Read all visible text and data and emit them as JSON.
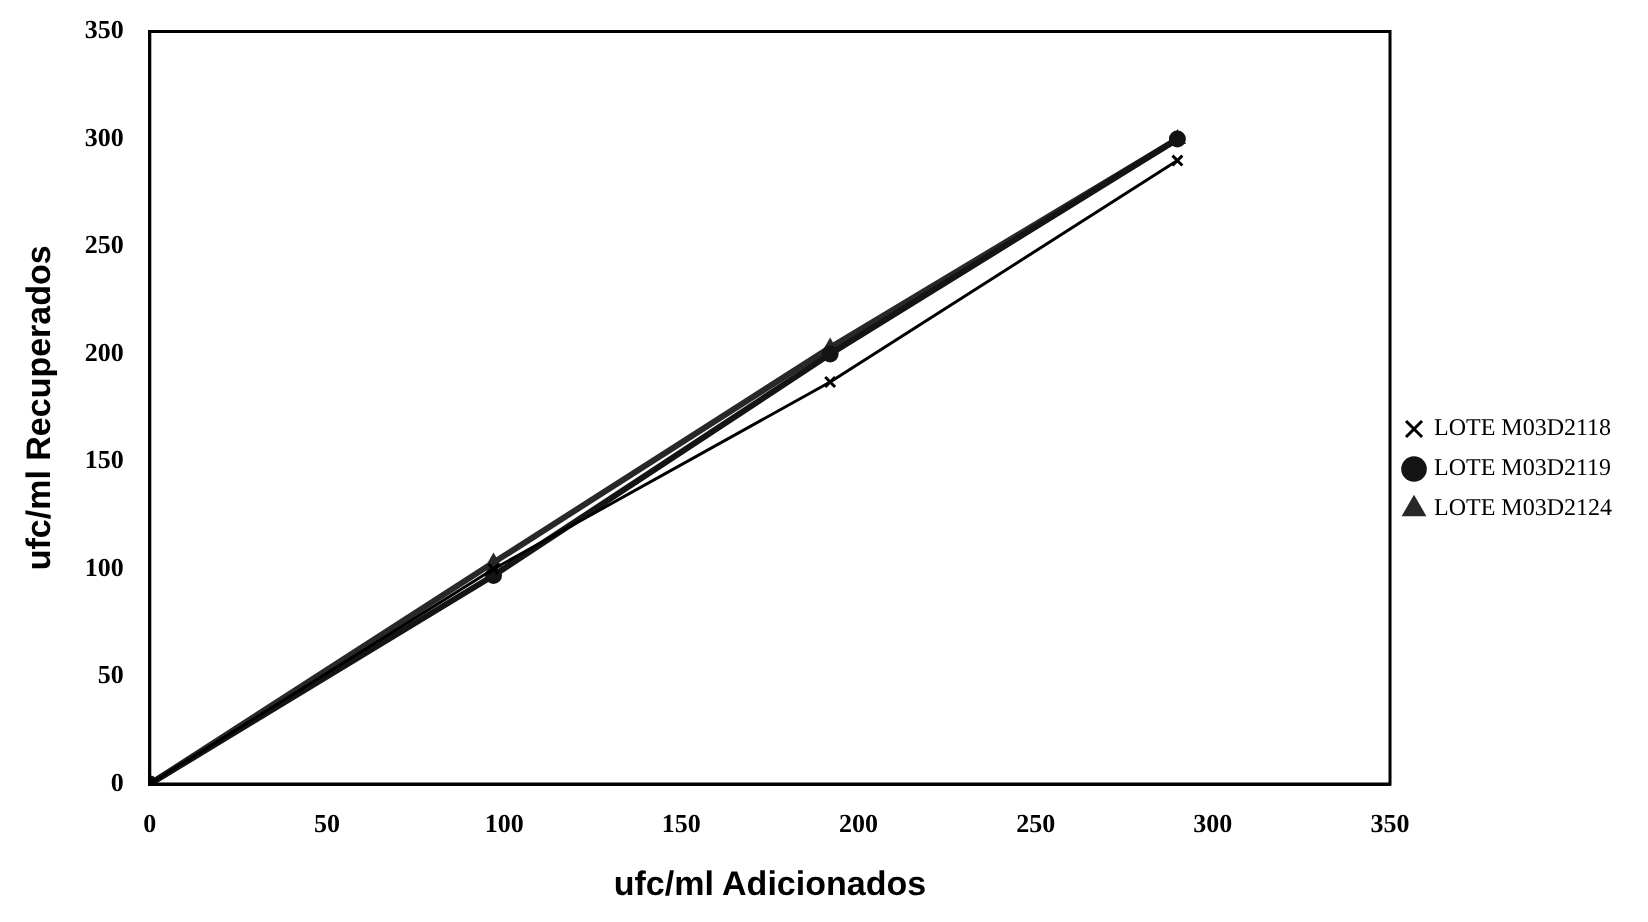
{
  "chart_data": {
    "type": "line",
    "xlabel": "ufc/ml Adicionados",
    "ylabel": "ufc/ml Recuperados",
    "xlim": [
      0,
      350
    ],
    "xticks": [
      0,
      50,
      100,
      150,
      200,
      250,
      300,
      350
    ],
    "ylim": [
      0,
      350
    ],
    "yticks": [
      0,
      50,
      100,
      150,
      200,
      250,
      300,
      350
    ],
    "grid": false,
    "legend": "right",
    "series": [
      {
        "name": "LOTE M03D2118",
        "color": "#000000",
        "marker": "cross",
        "x": [
          0,
          97,
          192,
          290
        ],
        "values": [
          0,
          100,
          187,
          290
        ]
      },
      {
        "name": "LOTE M03D2119",
        "color": "#141414",
        "marker": "circle",
        "x": [
          0,
          97,
          192,
          290
        ],
        "values": [
          0,
          97,
          200,
          300
        ]
      },
      {
        "name": "LOTE M03D2124",
        "color": "#282828",
        "marker": "triangle",
        "x": [
          0,
          97,
          192,
          290
        ],
        "values": [
          0,
          103,
          203,
          300
        ]
      }
    ]
  }
}
